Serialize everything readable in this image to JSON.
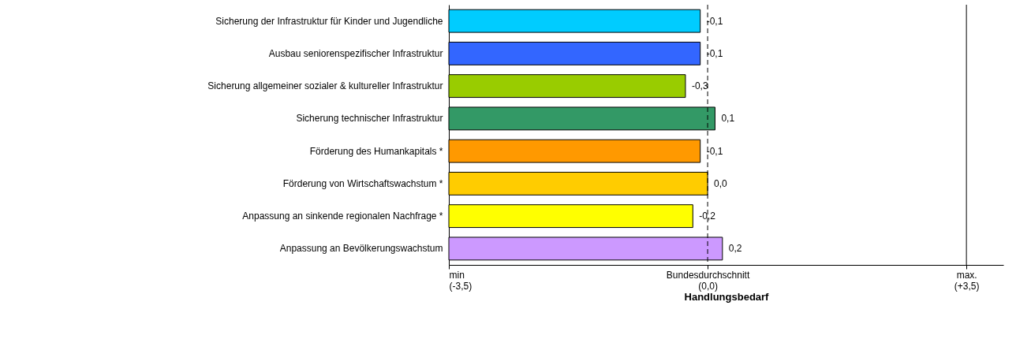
{
  "chart_data": {
    "type": "bar",
    "orientation": "horizontal",
    "xlabel": "Handlungsbedarf",
    "categories": [
      "Sicherung der Infrastruktur für Kinder und Jugendliche",
      "Ausbau seniorenspezifischer Infrastruktur",
      "Sicherung allgemeiner sozialer & kultureller Infrastruktur",
      "Sicherung technischer Infrastruktur",
      "Förderung des Humankapitals *",
      "Förderung von Wirtschaftswachstum *",
      "Anpassung an sinkende regionalen Nachfrage *",
      "Anpassung an Bevölkerungswachstum"
    ],
    "values": [
      3.4,
      3.4,
      3.2,
      3.6,
      3.4,
      3.5,
      3.3,
      3.7
    ],
    "base": [
      -3.5,
      -3.5,
      -3.5,
      -3.5,
      -3.5,
      -3.5,
      -3.5,
      -3.5
    ],
    "value_labels": [
      "-0,1",
      "-0,1",
      "-0,3",
      "0,1",
      "-0,1",
      "0,0",
      "-0,2",
      "0,2"
    ],
    "colors": [
      "#00ccff",
      "#3366ff",
      "#99cc00",
      "#339966",
      "#ff9900",
      "#ffcc00",
      "#ffff00",
      "#cc99ff"
    ],
    "xlim": [
      -3.5,
      4.0
    ],
    "xticks": [
      {
        "value": -3.5,
        "label": "min\n(-3,5)"
      },
      {
        "value": 0,
        "label": "Bundesdurchschnitt\n(0,0)"
      },
      {
        "value": 3.5,
        "label": "max.\n(+3,5)"
      }
    ],
    "ref_lines": [
      {
        "axis": "x",
        "value": 0,
        "label": null,
        "line_style": "dashed",
        "color": "#000000"
      },
      {
        "axis": "x",
        "value": 3.5,
        "label": null,
        "line_style": "solid",
        "color": "#000000"
      }
    ],
    "grid": false
  }
}
